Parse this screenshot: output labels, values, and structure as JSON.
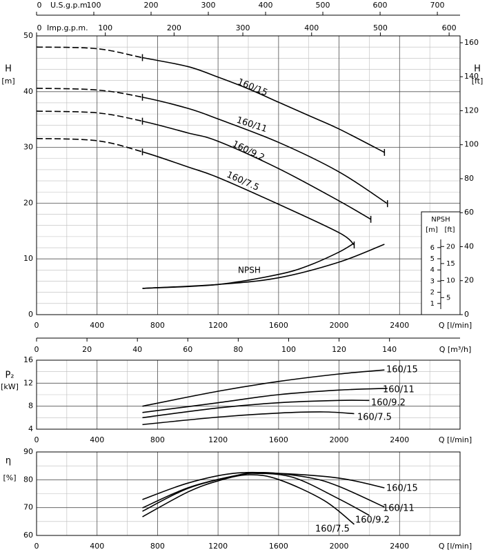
{
  "chart_data": [
    {
      "type": "line",
      "ylabel": "H",
      "yunit": "[m]",
      "y2label": "H",
      "y2unit": "[ft]",
      "xlabel": "Q [l/min]",
      "xlim": [
        0,
        2800
      ],
      "xticks": [
        0,
        400,
        800,
        1200,
        1600,
        2000,
        2400
      ],
      "ylim": [
        0,
        50
      ],
      "yticks": [
        0,
        10,
        20,
        30,
        40,
        50
      ],
      "y2lim": [
        0,
        164.04
      ],
      "y2ticks": [
        0,
        20,
        40,
        60,
        80,
        100,
        120,
        140,
        160
      ],
      "grid": true,
      "dashed_below_x": 700,
      "top_axes": [
        {
          "label": "U.S.g.p.m.",
          "lim": [
            0,
            739.68
          ],
          "ticks": [
            0,
            100,
            200,
            300,
            400,
            500,
            600,
            700
          ]
        },
        {
          "label": "Imp.g.p.m.",
          "lim": [
            0,
            615.92
          ],
          "ticks": [
            0,
            100,
            200,
            300,
            400,
            500,
            600
          ]
        }
      ],
      "bottom_axis": {
        "label": "Q [m³/h]",
        "lim": [
          0,
          168
        ],
        "ticks": [
          0,
          20,
          40,
          60,
          80,
          100,
          120,
          140
        ]
      },
      "series": [
        {
          "name": "160/15",
          "color": "#000000",
          "x": [
            0,
            400,
            700,
            1000,
            1200,
            1400,
            1600,
            1800,
            2000,
            2300
          ],
          "values": [
            48.0,
            47.7,
            46.1,
            44.5,
            42.6,
            40.5,
            38.1,
            35.7,
            33.3,
            29.1
          ]
        },
        {
          "name": "160/11",
          "color": "#000000",
          "x": [
            0,
            400,
            700,
            1000,
            1200,
            1600,
            2000,
            2320
          ],
          "values": [
            40.6,
            40.3,
            39.0,
            37.0,
            35.1,
            30.9,
            25.6,
            19.9
          ]
        },
        {
          "name": "160/9.2",
          "color": "#000000",
          "x": [
            0,
            400,
            700,
            1000,
            1200,
            1600,
            2000,
            2210
          ],
          "values": [
            36.5,
            36.2,
            34.7,
            32.6,
            31.1,
            26.2,
            20.4,
            17.1
          ]
        },
        {
          "name": "160/7.5",
          "color": "#000000",
          "x": [
            0,
            400,
            700,
            1000,
            1200,
            1600,
            2000,
            2100
          ],
          "values": [
            31.6,
            31.2,
            29.2,
            26.5,
            24.6,
            19.8,
            14.7,
            12.5
          ]
        }
      ],
      "npsh_label": "NPSH",
      "npsh_axis": {
        "title": "NPSH",
        "unit_m": "[m]",
        "unit_ft": "[ft]",
        "lim": [
          0,
          9.2
        ],
        "ticks": [
          1,
          2,
          3,
          4,
          5,
          6
        ],
        "ft_lim": [
          0,
          30.18
        ],
        "ft_ticks": [
          5,
          10,
          15,
          20
        ]
      },
      "npsh_series": [
        {
          "color": "#000000",
          "x": [
            700,
            1200,
            1600,
            1800,
            2000,
            2100
          ],
          "values": [
            2.35,
            2.7,
            3.6,
            4.4,
            5.6,
            6.4
          ]
        },
        {
          "color": "#000000",
          "x": [
            700,
            1200,
            1600,
            2000,
            2300
          ],
          "values": [
            2.35,
            2.7,
            3.3,
            4.7,
            6.3
          ]
        }
      ]
    },
    {
      "type": "line",
      "ylabel": "P₂",
      "yunit": "[kW]",
      "xlabel": "Q [l/min]",
      "xlim": [
        0,
        2800
      ],
      "xticks": [
        0,
        400,
        800,
        1200,
        1600,
        2000,
        2400
      ],
      "ylim": [
        4,
        16
      ],
      "yticks": [
        4,
        8,
        12,
        16
      ],
      "grid": true,
      "series": [
        {
          "name": "160/15",
          "color": "#000000",
          "x": [
            700,
            1200,
            1600,
            2000,
            2300
          ],
          "values": [
            8.0,
            10.6,
            12.3,
            13.6,
            14.3
          ]
        },
        {
          "name": "160/11",
          "color": "#000000",
          "x": [
            700,
            1200,
            1600,
            2000,
            2320
          ],
          "values": [
            6.9,
            8.6,
            10.0,
            10.8,
            11.1
          ]
        },
        {
          "name": "160/9.2",
          "color": "#000000",
          "x": [
            700,
            1200,
            1600,
            2000,
            2200
          ],
          "values": [
            6.0,
            7.7,
            8.6,
            9.0,
            9.0
          ]
        },
        {
          "name": "160/7.5",
          "color": "#000000",
          "x": [
            700,
            1200,
            1600,
            1900,
            2100
          ],
          "values": [
            4.8,
            6.1,
            6.8,
            7.0,
            6.7
          ]
        }
      ]
    },
    {
      "type": "line",
      "ylabel": "η",
      "yunit": "[%]",
      "xlabel": "Q [l/min]",
      "xlim": [
        0,
        2800
      ],
      "xticks": [
        0,
        400,
        800,
        1200,
        1600,
        2000,
        2400
      ],
      "ylim": [
        60,
        90
      ],
      "yticks": [
        60,
        70,
        80,
        90
      ],
      "grid": true,
      "series": [
        {
          "name": "160/15",
          "color": "#000000",
          "x": [
            700,
            1000,
            1300,
            1600,
            2000,
            2300
          ],
          "values": [
            72.9,
            78.8,
            82.3,
            82.3,
            80.6,
            77.1
          ]
        },
        {
          "name": "160/11",
          "color": "#000000",
          "x": [
            700,
            1000,
            1300,
            1500,
            1800,
            2000,
            2300
          ],
          "values": [
            69.9,
            77.1,
            81.3,
            82.6,
            80.8,
            77.6,
            70.2
          ]
        },
        {
          "name": "160/9.2",
          "color": "#000000",
          "x": [
            700,
            1000,
            1300,
            1450,
            1700,
            2000,
            2200
          ],
          "values": [
            68.7,
            76.9,
            81.3,
            82.3,
            80.8,
            73.1,
            67.2
          ]
        },
        {
          "name": "160/7.5",
          "color": "#000000",
          "x": [
            700,
            1000,
            1200,
            1400,
            1600,
            1900,
            2100
          ],
          "values": [
            66.7,
            75.6,
            79.6,
            81.8,
            80.1,
            72.6,
            64.0
          ]
        }
      ]
    }
  ]
}
